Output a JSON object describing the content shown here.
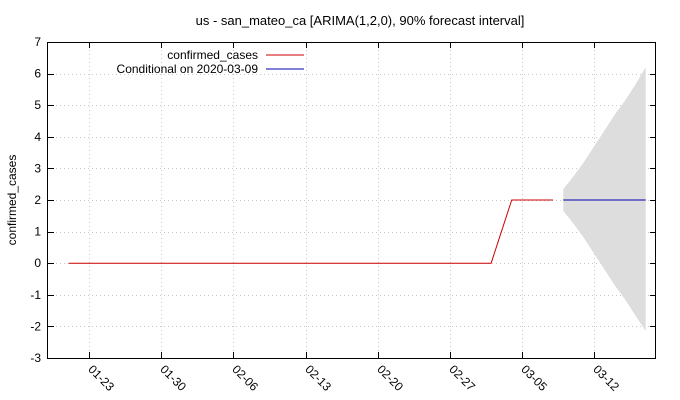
{
  "chart_data": {
    "type": "line",
    "title": "us - san_mateo_ca [ARIMA(1,2,0), 90% forecast interval]",
    "xlabel": "",
    "ylabel": "confirmed_cases",
    "x_tick_labels": [
      "01-23",
      "01-30",
      "02-06",
      "02-13",
      "02-20",
      "02-27",
      "03-05",
      "03-12"
    ],
    "y_ticks": [
      -3,
      -2,
      -1,
      0,
      1,
      2,
      3,
      4,
      5,
      6,
      7
    ],
    "ylim": [
      -3,
      7
    ],
    "xlim": [
      "2020-01-19",
      "2020-03-18"
    ],
    "grid": true,
    "legend_position": "top-left",
    "series": [
      {
        "name": "confirmed_cases",
        "color": "#cc0000",
        "x": [
          "2020-01-21",
          "2020-03-02",
          "2020-03-04",
          "2020-03-08"
        ],
        "y": [
          0,
          0,
          2,
          2
        ]
      },
      {
        "name": "Conditional on 2020-03-09",
        "color": "#0000b0",
        "x": [
          "2020-03-09",
          "2020-03-17"
        ],
        "y": [
          2,
          2
        ]
      }
    ],
    "forecast_interval": {
      "color": "#dddddd",
      "x": [
        "2020-03-09",
        "2020-03-10",
        "2020-03-11",
        "2020-03-12",
        "2020-03-13",
        "2020-03-14",
        "2020-03-15",
        "2020-03-16",
        "2020-03-17"
      ],
      "lower": [
        1.65,
        1.25,
        0.8,
        0.3,
        -0.2,
        -0.7,
        -1.15,
        -1.65,
        -2.15
      ],
      "upper": [
        2.35,
        2.75,
        3.2,
        3.7,
        4.2,
        4.7,
        5.15,
        5.65,
        6.2
      ]
    }
  }
}
